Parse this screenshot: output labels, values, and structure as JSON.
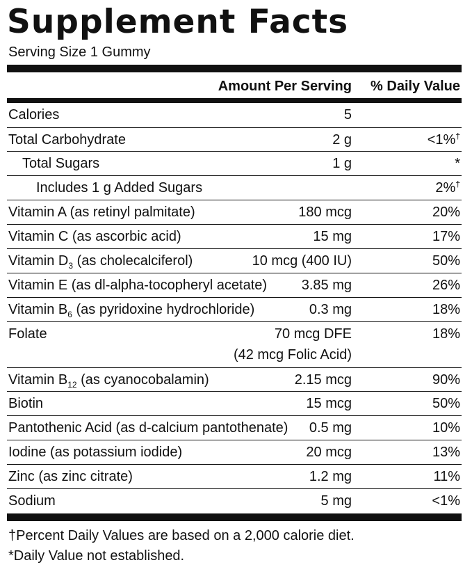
{
  "title": "Supplement Facts",
  "serving_size": "Serving Size 1 Gummy",
  "headers": {
    "amount": "Amount Per Serving",
    "daily_value": "% Daily Value"
  },
  "rows": [
    {
      "name": "Calories",
      "amount": "5",
      "dv": ""
    },
    {
      "name": "Total Carbohydrate",
      "amount": "2 g",
      "dv": "<1%†"
    },
    {
      "name": "Total Sugars",
      "amount": "1 g",
      "dv": "*"
    },
    {
      "name": "Includes 1 g Added Sugars",
      "amount": "",
      "dv": "2%†"
    },
    {
      "name": "Vitamin A (as retinyl palmitate)",
      "amount": "180 mcg",
      "dv": "20%"
    },
    {
      "name": "Vitamin C (as ascorbic acid)",
      "amount": "15 mg",
      "dv": "17%"
    },
    {
      "name_pre": "Vitamin D",
      "name_sub": "3",
      "name_post": " (as cholecalciferol)",
      "amount": "10 mcg (400 IU)",
      "dv": "50%"
    },
    {
      "name": "Vitamin E (as dl-alpha-tocopheryl acetate)",
      "amount": "3.85 mg",
      "dv": "26%"
    },
    {
      "name_pre": "Vitamin B",
      "name_sub": "6",
      "name_post": " (as pyridoxine hydrochloride)",
      "amount": "0.3 mg",
      "dv": "18%"
    },
    {
      "name": "Folate",
      "amount": "70 mcg DFE",
      "amount_line2": "(42 mcg Folic Acid)",
      "dv": "18%"
    },
    {
      "name_pre": "Vitamin B",
      "name_sub": "12",
      "name_post": " (as cyanocobalamin)",
      "amount": "2.15 mcg",
      "dv": "90%"
    },
    {
      "name": "Biotin",
      "amount": "15 mcg",
      "dv": "50%"
    },
    {
      "name": "Pantothenic Acid (as d-calcium pantothenate)",
      "amount": "0.5 mg",
      "dv": "10%"
    },
    {
      "name": "Iodine (as potassium iodide)",
      "amount": "20 mcg",
      "dv": "13%"
    },
    {
      "name": "Zinc (as zinc citrate)",
      "amount": "1.2 mg",
      "dv": "11%"
    },
    {
      "name": "Sodium",
      "amount": "5 mg",
      "dv": "<1%"
    }
  ],
  "footnotes": [
    "†Percent Daily Values are based on a 2,000 calorie diet.",
    "*Daily Value not established."
  ]
}
